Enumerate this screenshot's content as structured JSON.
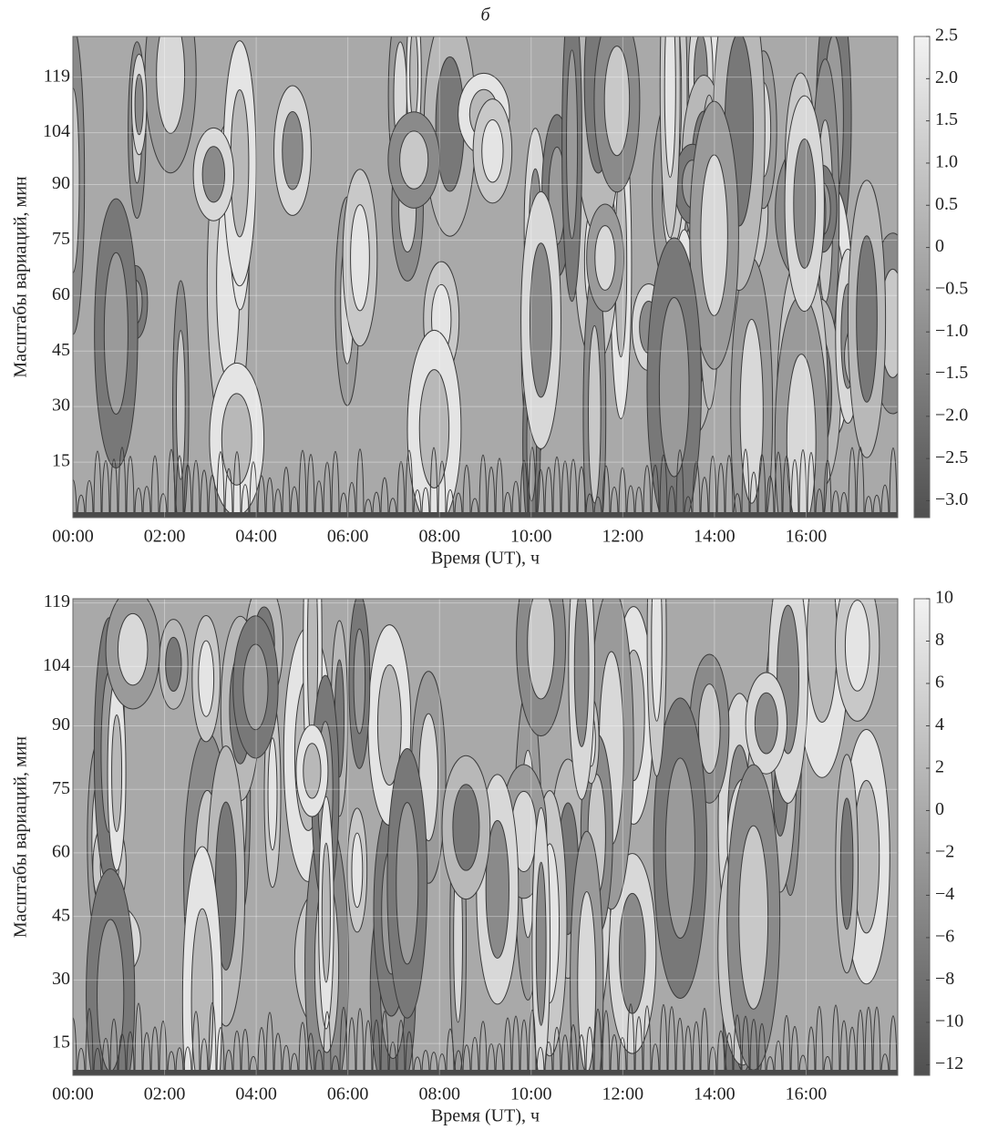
{
  "chart_data": [
    {
      "type": "contour",
      "title": "б",
      "xlabel": "Время (UT), ч",
      "ylabel": "Масштабы вариаций, мин",
      "xlim": [
        0,
        18
      ],
      "xticks": [
        {
          "value": 0,
          "label": "00:00"
        },
        {
          "value": 2,
          "label": "02:00"
        },
        {
          "value": 4,
          "label": "04:00"
        },
        {
          "value": 6,
          "label": "06:00"
        },
        {
          "value": 8,
          "label": "08:00"
        },
        {
          "value": 10,
          "label": "10:00"
        },
        {
          "value": 12,
          "label": "12:00"
        },
        {
          "value": 14,
          "label": "14:00"
        },
        {
          "value": 16,
          "label": "16:00"
        }
      ],
      "ylim": [
        0,
        130
      ],
      "yticks": [
        15,
        30,
        45,
        60,
        75,
        90,
        104,
        119
      ],
      "grid": true,
      "colormap": [
        "#505050",
        "#f2f2f2"
      ],
      "clim": [
        -3.2,
        2.5
      ],
      "cticks": [
        2.5,
        {
          "value": 2,
          "label": "2.0"
        },
        1.5,
        {
          "value": 1,
          "label": "1.0"
        },
        0.5,
        0,
        {
          "value": -0.5,
          "label": "−0.5"
        },
        {
          "value": -1,
          "label": "−1.0"
        },
        {
          "value": -1.5,
          "label": "−1.5"
        },
        {
          "value": -2,
          "label": "−2.0"
        },
        {
          "value": -2.5,
          "label": "−2.5"
        },
        {
          "value": -3,
          "label": "−3.0"
        }
      ]
    },
    {
      "type": "contour",
      "xlabel": "Время (UT), ч",
      "ylabel": "Масштабы вариаций, мин",
      "xlim": [
        0,
        18
      ],
      "xticks": [
        {
          "value": 0,
          "label": "00:00"
        },
        {
          "value": 2,
          "label": "02:00"
        },
        {
          "value": 4,
          "label": "04:00"
        },
        {
          "value": 6,
          "label": "06:00"
        },
        {
          "value": 8,
          "label": "08:00"
        },
        {
          "value": 10,
          "label": "10:00"
        },
        {
          "value": 12,
          "label": "12:00"
        },
        {
          "value": 14,
          "label": "14:00"
        },
        {
          "value": 16,
          "label": "16:00"
        }
      ],
      "ylim": [
        7.5,
        120
      ],
      "yticks": [
        15,
        30,
        45,
        60,
        75,
        90,
        104,
        119
      ],
      "grid": true,
      "colormap": [
        "#505050",
        "#f2f2f2"
      ],
      "clim": [
        -12.5,
        10
      ],
      "cticks": [
        10,
        8,
        6,
        4,
        2,
        0,
        {
          "value": -2,
          "label": "−2"
        },
        {
          "value": -4,
          "label": "−4"
        },
        {
          "value": -6,
          "label": "−6"
        },
        {
          "value": -8,
          "label": "−8"
        },
        {
          "value": -10,
          "label": "−10"
        },
        {
          "value": -12,
          "label": "−12"
        }
      ]
    }
  ]
}
